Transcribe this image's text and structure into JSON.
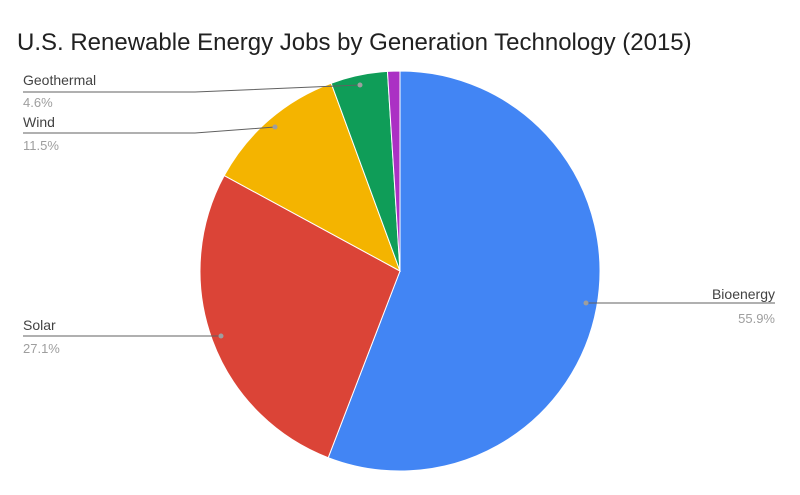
{
  "chart_data": {
    "type": "pie",
    "title": "U.S. Renewable Energy Jobs by Generation Technology (2015)",
    "legend": "none",
    "slices": [
      {
        "label": "Bioenergy",
        "value": 55.9,
        "value_label": "55.9%",
        "color": "#4285f4"
      },
      {
        "label": "Solar",
        "value": 27.1,
        "value_label": "27.1%",
        "color": "#db4437"
      },
      {
        "label": "Wind",
        "value": 11.5,
        "value_label": "11.5%",
        "color": "#f4b400"
      },
      {
        "label": "Geothermal",
        "value": 4.6,
        "value_label": "4.6%",
        "color": "#0f9d58"
      },
      {
        "label": "",
        "value": 1.0,
        "value_label": "",
        "color": "#ab30c4"
      }
    ]
  }
}
